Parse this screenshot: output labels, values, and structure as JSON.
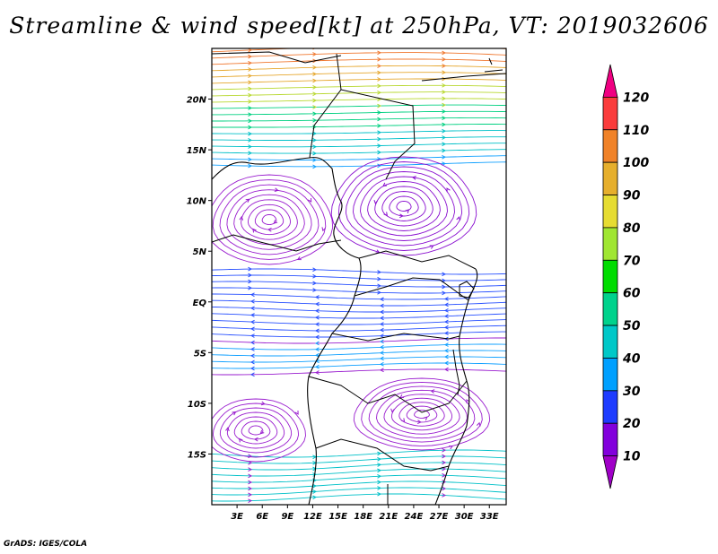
{
  "title": "Streamline & wind speed[kt] at 250hPa, VT: 2019032606",
  "footer": "GrADS: IGES/COLA",
  "map": {
    "lon_range": [
      0,
      35
    ],
    "lat_range": [
      -20,
      25
    ],
    "lat_ticks": [
      {
        "value": 20,
        "label": "20N"
      },
      {
        "value": 15,
        "label": "15N"
      },
      {
        "value": 10,
        "label": "10N"
      },
      {
        "value": 5,
        "label": "5N"
      },
      {
        "value": 0,
        "label": "EQ"
      },
      {
        "value": -5,
        "label": "5S"
      },
      {
        "value": -10,
        "label": "10S"
      },
      {
        "value": -15,
        "label": "15S"
      }
    ],
    "lon_ticks": [
      {
        "value": 3,
        "label": "3E"
      },
      {
        "value": 6,
        "label": "6E"
      },
      {
        "value": 9,
        "label": "9E"
      },
      {
        "value": 12,
        "label": "12E"
      },
      {
        "value": 15,
        "label": "15E"
      },
      {
        "value": 18,
        "label": "18E"
      },
      {
        "value": 21,
        "label": "21E"
      },
      {
        "value": 24,
        "label": "24E"
      },
      {
        "value": 27,
        "label": "27E"
      },
      {
        "value": 30,
        "label": "30E"
      },
      {
        "value": 33,
        "label": "33E"
      }
    ]
  },
  "colorbar": {
    "labels": [
      "10",
      "20",
      "30",
      "40",
      "50",
      "60",
      "70",
      "80",
      "90",
      "100",
      "110",
      "120"
    ],
    "colors": [
      "#a000c8",
      "#8200dc",
      "#1e3cff",
      "#00a0ff",
      "#00c8c8",
      "#00d28c",
      "#00dc00",
      "#a0e632",
      "#e6dc32",
      "#e6af2d",
      "#f08228",
      "#fa3c3c",
      "#f00082"
    ]
  }
}
